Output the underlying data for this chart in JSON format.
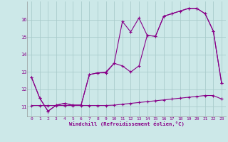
{
  "background_color": "#cce8e8",
  "grid_color": "#aacccc",
  "line_color": "#880088",
  "xlabel": "Windchill (Refroidissement éolien,°C)",
  "xlim": [
    -0.5,
    23.5
  ],
  "ylim": [
    10.45,
    17.05
  ],
  "xticks": [
    0,
    1,
    2,
    3,
    4,
    5,
    6,
    7,
    8,
    9,
    10,
    11,
    12,
    13,
    14,
    15,
    16,
    17,
    18,
    19,
    20,
    21,
    22,
    23
  ],
  "yticks": [
    11,
    12,
    13,
    14,
    15,
    16
  ],
  "series1_x": [
    0,
    1,
    2,
    3,
    4,
    5,
    6,
    7,
    8,
    9,
    10,
    11,
    12,
    13,
    14,
    15,
    16,
    17,
    18,
    19,
    20,
    21,
    22,
    23
  ],
  "series1_y": [
    12.7,
    11.5,
    10.75,
    11.1,
    11.2,
    11.1,
    11.1,
    12.85,
    12.95,
    13.0,
    13.5,
    15.9,
    15.3,
    16.1,
    15.1,
    15.05,
    16.2,
    16.35,
    16.5,
    16.65,
    16.65,
    16.35,
    15.35,
    12.35
  ],
  "series2_x": [
    0,
    1,
    2,
    3,
    4,
    5,
    6,
    7,
    8,
    9,
    10,
    11,
    12,
    13,
    14,
    15,
    16,
    17,
    18,
    19,
    20,
    21,
    22,
    23
  ],
  "series2_y": [
    12.7,
    11.5,
    10.75,
    11.1,
    11.2,
    11.1,
    11.1,
    12.85,
    12.95,
    12.95,
    13.5,
    13.35,
    13.0,
    13.35,
    15.1,
    15.05,
    16.2,
    16.35,
    16.5,
    16.65,
    16.65,
    16.35,
    15.35,
    12.35
  ],
  "series3_x": [
    0,
    1,
    2,
    3,
    4,
    5,
    6,
    7,
    8,
    9,
    10,
    11,
    12,
    13,
    14,
    15,
    16,
    17,
    18,
    19,
    20,
    21,
    22,
    23
  ],
  "series3_y": [
    11.08,
    11.08,
    11.08,
    11.08,
    11.08,
    11.08,
    11.08,
    11.08,
    11.08,
    11.08,
    11.1,
    11.15,
    11.2,
    11.25,
    11.3,
    11.35,
    11.4,
    11.45,
    11.5,
    11.55,
    11.6,
    11.65,
    11.65,
    11.45
  ]
}
